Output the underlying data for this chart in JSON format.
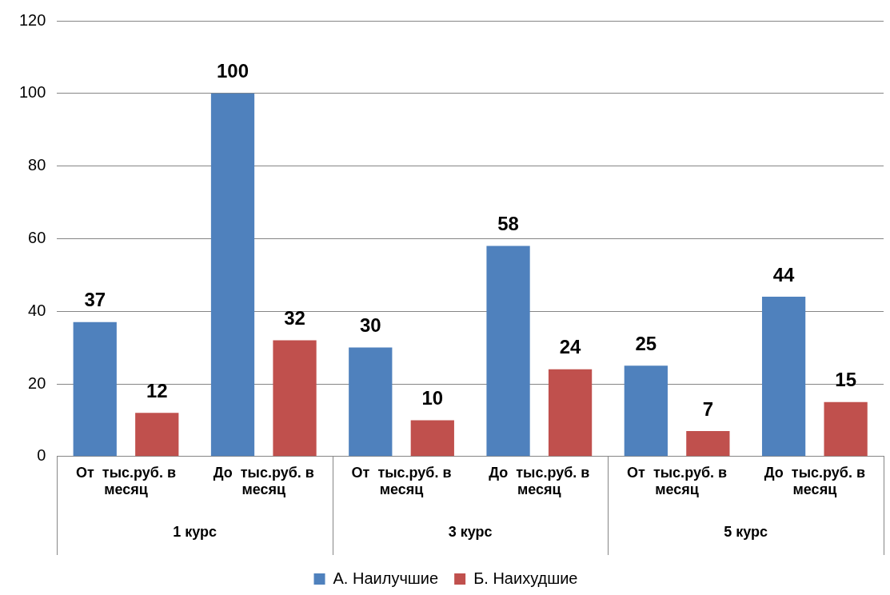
{
  "chart_data": {
    "type": "bar",
    "categories": [
      "От  тыс.руб. в месяц",
      "До  тыс.руб. в месяц",
      "От  тыс.руб. в месяц",
      "До  тыс.руб. в месяц",
      "От  тыс.руб. в месяц",
      "До  тыс.руб. в месяц"
    ],
    "series": [
      {
        "name": "А. Наилучшие",
        "color": "#4f81bd",
        "values": [
          37,
          100,
          30,
          58,
          25,
          44
        ]
      },
      {
        "name": "Б. Наихудшие",
        "color": "#c0504d",
        "values": [
          12,
          32,
          10,
          24,
          7,
          15
        ]
      }
    ],
    "annotations": [
      "1 курс",
      "3 курс",
      "5 курс"
    ],
    "ylim": [
      0,
      120
    ],
    "yticks": [
      0,
      20,
      40,
      60,
      80,
      100,
      120
    ],
    "grid": "y",
    "legend": "bottom",
    "data_labels": true
  }
}
